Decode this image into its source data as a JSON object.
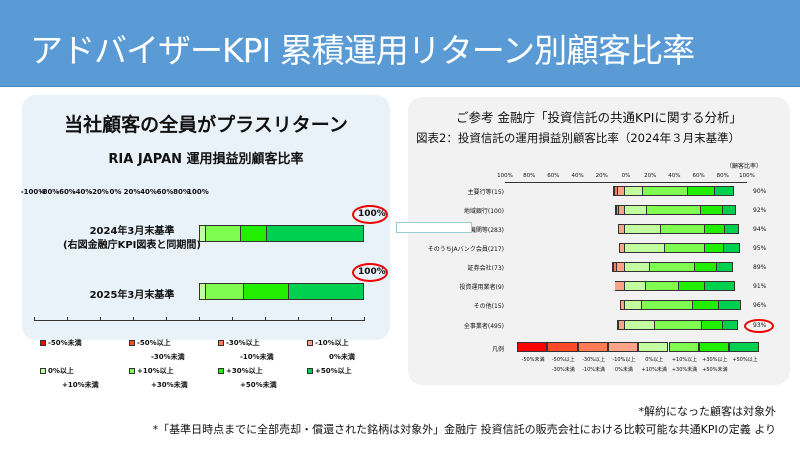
{
  "header": {
    "title": "アドバイザーKPI 累積運用リターン別顧客比率"
  },
  "left": {
    "headline": "当社顧客の全員がプラスリターン",
    "chart_title": "RIA JAPAN 運用損益別顧客比率",
    "row_labels": [
      [
        "2024年3月末基準",
        "(右図金融庁KPI図表と同期間)"
      ],
      [
        "2025年3月末基準",
        ""
      ]
    ],
    "badges": [
      "100%",
      "100%"
    ]
  },
  "legend": [
    {
      "l1": "-50%未満",
      "l2": "",
      "color": "#ff0000"
    },
    {
      "l1": "-50%以上",
      "l2": "-30%未満",
      "color": "#ff4a2a"
    },
    {
      "l1": "-30%以上",
      "l2": "-10%未満",
      "color": "#ff7a55"
    },
    {
      "l1": "-10%以上",
      "l2": "0%未満",
      "color": "#ffa388"
    },
    {
      "l1": "0%以上",
      "l2": "+10%未満",
      "color": "#c4fca0"
    },
    {
      "l1": "+10%以上",
      "l2": "+30%未満",
      "color": "#80fc50"
    },
    {
      "l1": "+30%以上",
      "l2": "+50%未満",
      "color": "#22ee00"
    },
    {
      "l1": "+50%以上",
      "l2": "",
      "color": "#00d050"
    }
  ],
  "right": {
    "title": "ご参考 金融庁「投資信託の共通KPIに関する分析」",
    "subtitle": "図表2：投資信託の運用損益別顧客比率（2024年３月末基準）",
    "unit": "（顧客比率）",
    "legend_label": "凡例"
  },
  "chart_data": [
    {
      "type": "bar",
      "stacked": true,
      "title": "RIA JAPAN 運用損益別顧客比率",
      "xticks": [
        "-100%",
        "-80%",
        "-60%",
        "-40%",
        "-20%",
        "0%",
        "20%",
        "40%",
        "60%",
        "80%",
        "100%"
      ],
      "xlim": [
        -100,
        100
      ],
      "categories": [
        "2024年3月末基準",
        "2025年3月末基準"
      ],
      "series_order": [
        "-50%未満",
        "-50%~-30%",
        "-30%~-10%",
        "-10%~0%",
        "0%~+10%",
        "+10%~+30%",
        "+30%~+50%",
        "+50%以上"
      ],
      "values": [
        [
          0,
          0,
          0,
          0,
          4.5,
          21,
          16,
          58.5
        ],
        [
          0,
          0,
          0,
          0,
          4.5,
          23,
          27,
          45.5
        ]
      ],
      "positive_share": [
        "100%",
        "100%"
      ]
    },
    {
      "type": "bar",
      "stacked": true,
      "title": "図表2：投資信託の運用損益別顧客比率（2024年３月末基準）",
      "xticks": [
        "100%",
        "80%",
        "60%",
        "40%",
        "20%",
        "0%",
        "20%",
        "40%",
        "60%",
        "80%",
        "100%"
      ],
      "xlim": [
        -100,
        100
      ],
      "categories": [
        "主要行等(15)",
        "地域銀行(100)",
        "協同組織金融機関等(283)",
        "そのうちJAバンク会員(217)",
        "証券会社(73)",
        "投資運用業者(9)",
        "その他(15)",
        "全事業者(495)"
      ],
      "values": [
        [
          1,
          1,
          2,
          6,
          15,
          37,
          22,
          16
        ],
        [
          0.5,
          1,
          1.5,
          5,
          18,
          45,
          18,
          11
        ],
        [
          0,
          0,
          1,
          5,
          30,
          36,
          17,
          11
        ],
        [
          0,
          0,
          0,
          5,
          33,
          33,
          16,
          13
        ],
        [
          1,
          1,
          2,
          7,
          21,
          37,
          18,
          13
        ],
        [
          0.5,
          0,
          0,
          8,
          17,
          28,
          21,
          25
        ],
        [
          1,
          0,
          0,
          3,
          14,
          42,
          22,
          18
        ],
        [
          0.5,
          0.5,
          1,
          5,
          25,
          39,
          17,
          12
        ]
      ],
      "positive_share": [
        "90%",
        "92%",
        "94%",
        "95%",
        "89%",
        "91%",
        "96%",
        "93%"
      ]
    }
  ],
  "footnotes": [
    "*解約になった顧客は対象外",
    "*「基準日時点までに全部売却・償還された銘柄は対象外」金融庁 投資信託の販売会社における比較可能な共通KPIの定義 より"
  ]
}
